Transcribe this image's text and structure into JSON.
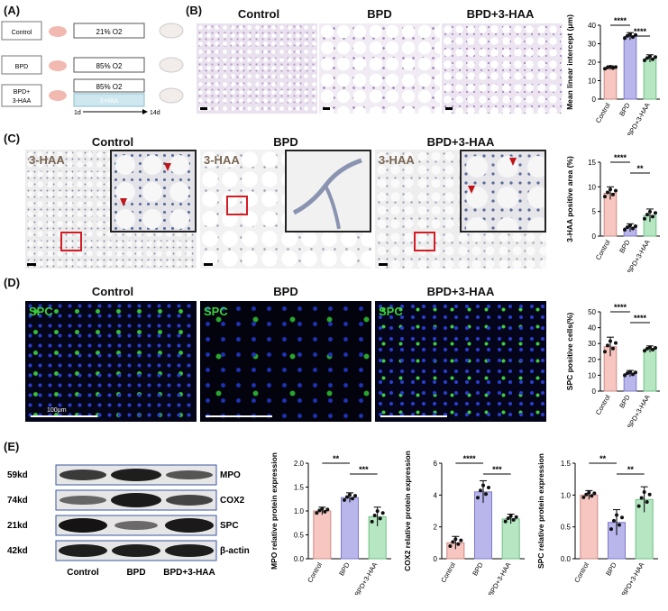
{
  "panels": {
    "A": {
      "label": "(A)",
      "groups": [
        {
          "name": "Control",
          "treatment": "21% O2",
          "extra": ""
        },
        {
          "name": "BPD",
          "treatment": "85% O2",
          "extra": ""
        },
        {
          "name": "BPD+\n3-HAA",
          "treatment": "85% O2",
          "extra": "3-HAA"
        }
      ],
      "timeline_start": "1d",
      "timeline_end": "14d"
    },
    "B": {
      "label": "(B)",
      "titles": [
        "Control",
        "BPD",
        "BPD+3-HAA"
      ]
    },
    "C": {
      "label": "(C)",
      "titles": [
        "Control",
        "BPD",
        "BPD+3-HAA"
      ],
      "stain": "3-HAA"
    },
    "D": {
      "label": "(D)",
      "titles": [
        "Control",
        "BPD",
        "BPD+3-HAA"
      ],
      "stain": "SPC",
      "scale_bar": "100μm"
    },
    "E": {
      "label": "(E)",
      "blot_rows": [
        {
          "kd": "59kd",
          "name": "MPO"
        },
        {
          "kd": "74kd",
          "name": "COX2"
        },
        {
          "kd": "21kd",
          "name": "SPC"
        },
        {
          "kd": "42kd",
          "name": "β-actin"
        }
      ],
      "lanes": [
        "Control",
        "BPD",
        "BPD+3-HAA"
      ]
    }
  },
  "colors": {
    "control": "#f7c6c0",
    "bpd": "#b9b6ec",
    "treat": "#b6e6c2",
    "he_bg": "#e9e1ee",
    "ihc_bg": "#ececec",
    "if_bg": "#0a0a1a"
  },
  "chart_data": [
    {
      "id": "B",
      "type": "bar",
      "categories": [
        "Control",
        "BPD",
        "BPD+3-HAA"
      ],
      "values": [
        17,
        34,
        22
      ],
      "errors": [
        1,
        2,
        2
      ],
      "ylabel": "Mean linear intercept (μm)",
      "ylim": [
        0,
        40
      ],
      "yticks": [
        0,
        10,
        20,
        30,
        40
      ],
      "sig": [
        {
          "from": 0,
          "to": 1,
          "label": "****"
        },
        {
          "from": 1,
          "to": 2,
          "label": "****"
        }
      ]
    },
    {
      "id": "C",
      "type": "bar",
      "categories": [
        "Control",
        "BPD",
        "BPD+3-HAA"
      ],
      "values": [
        8.7,
        1.7,
        4.2
      ],
      "errors": [
        1.3,
        0.8,
        1.3
      ],
      "ylabel": "3-HAA positive area (%)",
      "ylim": [
        0,
        15
      ],
      "yticks": [
        0,
        5,
        10,
        15
      ],
      "sig": [
        {
          "from": 0,
          "to": 1,
          "label": "****"
        },
        {
          "from": 1,
          "to": 2,
          "label": "**"
        }
      ]
    },
    {
      "id": "D",
      "type": "bar",
      "categories": [
        "Control",
        "BPD",
        "BPD+3-HAA"
      ],
      "values": [
        28,
        11,
        26.5
      ],
      "errors": [
        6,
        2,
        2
      ],
      "ylabel": "SPC positive cells(%)",
      "ylim": [
        0,
        50
      ],
      "yticks": [
        0,
        10,
        20,
        30,
        40,
        50
      ],
      "sig": [
        {
          "from": 0,
          "to": 1,
          "label": "****"
        },
        {
          "from": 1,
          "to": 2,
          "label": "****"
        }
      ]
    },
    {
      "id": "E1",
      "type": "bar",
      "categories": [
        "Control",
        "BPD",
        "BPD+3-HAA"
      ],
      "values": [
        1.0,
        1.28,
        0.88
      ],
      "errors": [
        0.08,
        0.1,
        0.2
      ],
      "ylabel": "MPO relative protein expression",
      "ylim": [
        0,
        2.0
      ],
      "yticks": [
        0.0,
        0.5,
        1.0,
        1.5,
        2.0
      ],
      "sig": [
        {
          "from": 0,
          "to": 1,
          "label": "**"
        },
        {
          "from": 1,
          "to": 2,
          "label": "***"
        }
      ]
    },
    {
      "id": "E2",
      "type": "bar",
      "categories": [
        "Control",
        "BPD",
        "BPD+3-HAA"
      ],
      "values": [
        1.0,
        4.2,
        2.5
      ],
      "errors": [
        0.4,
        0.7,
        0.3
      ],
      "ylabel": "COX2 relative protein expression",
      "ylim": [
        0,
        6
      ],
      "yticks": [
        0,
        2,
        4,
        6
      ],
      "sig": [
        {
          "from": 0,
          "to": 1,
          "label": "****"
        },
        {
          "from": 1,
          "to": 2,
          "label": "***"
        }
      ]
    },
    {
      "id": "E3",
      "type": "bar",
      "categories": [
        "Control",
        "BPD",
        "BPD+3-HAA"
      ],
      "values": [
        1.0,
        0.57,
        0.93
      ],
      "errors": [
        0.07,
        0.2,
        0.2
      ],
      "ylabel": "SPC relative protein expression",
      "ylim": [
        0,
        1.5
      ],
      "yticks": [
        0.0,
        0.5,
        1.0,
        1.5
      ],
      "sig": [
        {
          "from": 0,
          "to": 1,
          "label": "**"
        },
        {
          "from": 1,
          "to": 2,
          "label": "**"
        }
      ]
    }
  ]
}
